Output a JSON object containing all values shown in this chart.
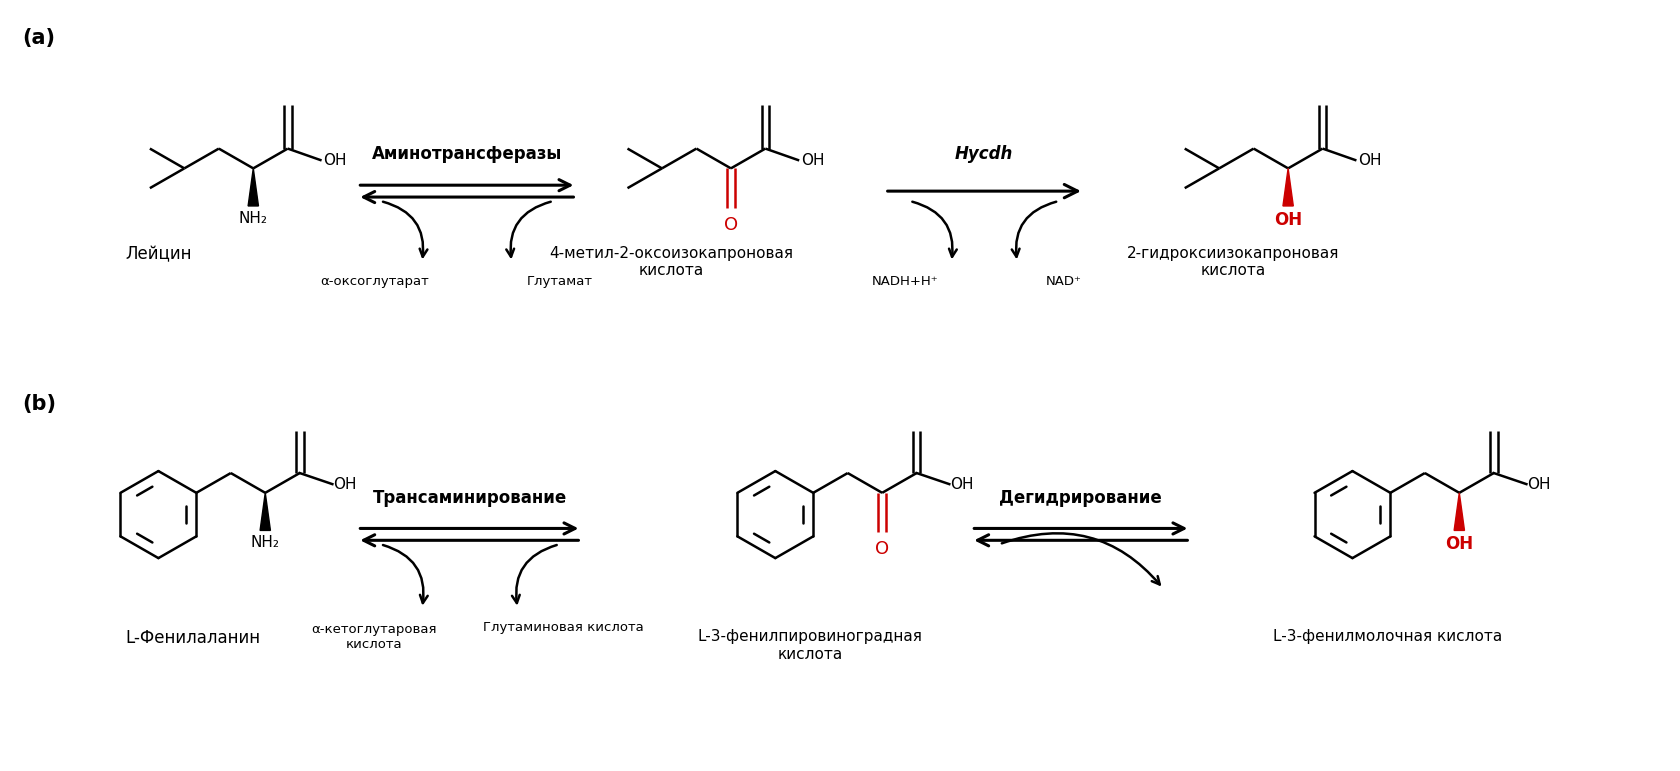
{
  "bg_color": "#ffffff",
  "figsize": [
    16.8,
    7.71
  ],
  "dpi": 100,
  "panel_a_label": "(a)",
  "panel_b_label": "(b)",
  "compound1_name": "Лейцин",
  "compound2_name": "4-метил-2-оксоизокапроновая\nкислота",
  "compound3_name": "2-гидроксиизокапроновая\nкислота",
  "enzyme1_name": "Аминотрансферазы",
  "enzyme2_name": "Hycdh",
  "cofactor1_left": "α-оксоглутарат",
  "cofactor1_right": "Глутамат",
  "cofactor2_left": "NADH+H⁺",
  "cofactor2_right": "NAD⁺",
  "compound4_name": "L-Фенилаланин",
  "compound5_name": "L-3-фенилпировиноградная\nкислота",
  "compound6_name": "L-3-фенилмолочная кислота",
  "enzyme3_name": "Трансаминирование",
  "enzyme4_name": "Дегидрирование",
  "cofactor3_left": "α-кетоглутаровая\nкислота",
  "cofactor3_right": "Глутаминовая кислота",
  "black": "#000000",
  "red": "#cc0000"
}
